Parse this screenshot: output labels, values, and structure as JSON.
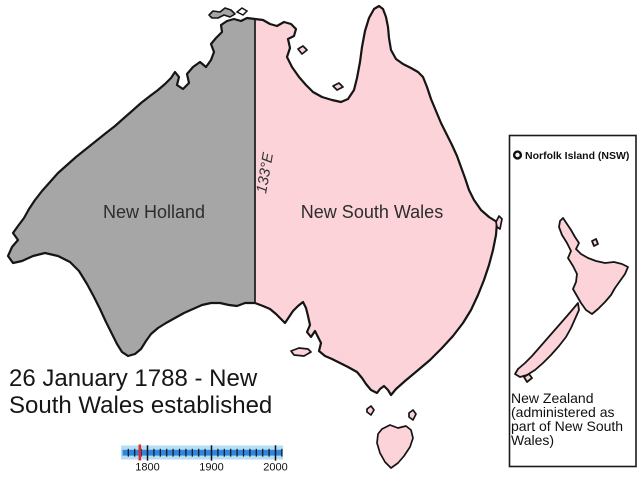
{
  "map": {
    "new_holland_label": "New Holland",
    "new_south_wales_label": "New South Wales",
    "meridian_label": "133°E",
    "caption": {
      "line1": "26 January 1788 - New",
      "line2": "South Wales established"
    }
  },
  "inset": {
    "norfolk_island_label": "Norfolk Island (NSW)",
    "new_zealand_caption": {
      "line1": "New Zealand",
      "line2": "(administered as",
      "line3": "part of New South",
      "line4": " Wales)"
    }
  },
  "timeline": {
    "start_year": 1770,
    "end_year": 2010,
    "tick_step": 10,
    "major_years": [
      1800,
      1900,
      2000
    ],
    "tick_labels": [
      "1800",
      "1900",
      "2000"
    ],
    "marker_year": 1788
  },
  "colors": {
    "new_holland_fill": "#a6a6a6",
    "new_south_wales_fill": "#fbd3d8",
    "outline": "#151515",
    "timeline_band": "#b5ddf4",
    "timeline_bar": "#2e86dd",
    "timeline_marker": "#e22b2b"
  }
}
